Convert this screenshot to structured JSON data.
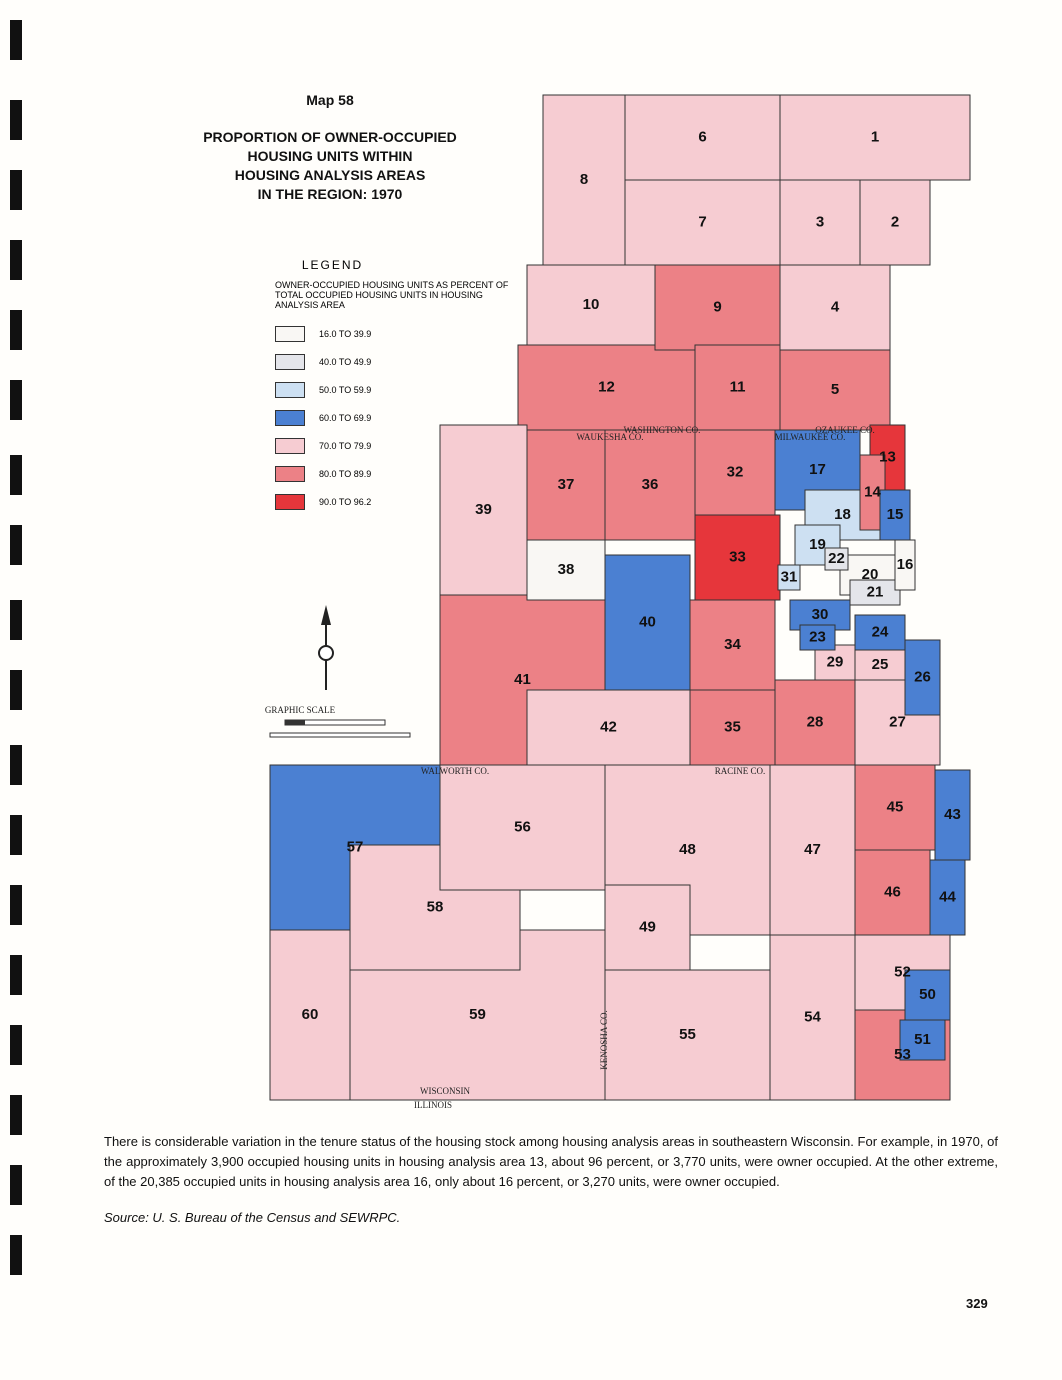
{
  "header": {
    "map_number": "Map 58",
    "title": [
      "PROPORTION OF OWNER-OCCUPIED",
      "HOUSING UNITS WITHIN",
      "HOUSING ANALYSIS AREAS",
      "IN THE REGION: 1970"
    ]
  },
  "legend": {
    "heading": "LEGEND",
    "description": "OWNER-OCCUPIED HOUSING UNITS AS PERCENT OF TOTAL OCCUPIED HOUSING UNITS IN HOUSING ANALYSIS AREA",
    "items": [
      {
        "label": "16.0  TO  39.9",
        "color": "#f9f7f4",
        "areas": [
          "16",
          "20",
          "38"
        ]
      },
      {
        "label": "40.0  TO  49.9",
        "color": "#e4e5ea",
        "areas": [
          "21",
          "22"
        ]
      },
      {
        "label": "50.0  TO  59.9",
        "color": "#cde0f2",
        "areas": [
          "18",
          "19",
          "31"
        ]
      },
      {
        "label": "60.0  TO  69.9",
        "color": "#4b80d2",
        "areas": [
          "15",
          "17",
          "23",
          "24",
          "26",
          "30",
          "40",
          "43",
          "44",
          "50",
          "51",
          "57"
        ]
      },
      {
        "label": "70.0  TO  79.9",
        "color": "#f6ccd2",
        "areas": [
          "1",
          "2",
          "3",
          "4",
          "6",
          "7",
          "8",
          "10",
          "25",
          "27",
          "29",
          "39",
          "42",
          "47",
          "48",
          "49",
          "52",
          "54",
          "55",
          "56",
          "58",
          "59",
          "60"
        ]
      },
      {
        "label": "80.0  TO  89.9",
        "color": "#ec8186",
        "areas": [
          "5",
          "9",
          "11",
          "12",
          "14",
          "28",
          "32",
          "34",
          "35",
          "36",
          "37",
          "41",
          "45",
          "46",
          "53"
        ]
      },
      {
        "label": "90.0  TO  96.2",
        "color": "#e6363b",
        "areas": [
          "13",
          "33"
        ]
      }
    ]
  },
  "map_labels": [
    "WASHINGTON CO.",
    "OZAUKEE CO.",
    "MILWAUKEE CO.",
    "WAUKESHA CO.",
    "WALWORTH CO.",
    "RACINE CO.",
    "KENOSHA CO.",
    "WISCONSIN",
    "ILLINOIS",
    "GRAPHIC SCALE"
  ],
  "body_text": "There is considerable variation in the tenure status of the housing stock among housing analysis areas in southeastern Wisconsin. For example, in 1970, of the approximately 3,900 occupied housing units in housing analysis area 13, about 96 percent, or 3,770 units, were owner occupied. At the other extreme, of the 20,385 occupied units in housing analysis area 16, only about 16 percent, or 3,270 units, were owner occupied.",
  "source": "Source:  U. S. Bureau of the Census and SEWRPC.",
  "page_number": "329"
}
